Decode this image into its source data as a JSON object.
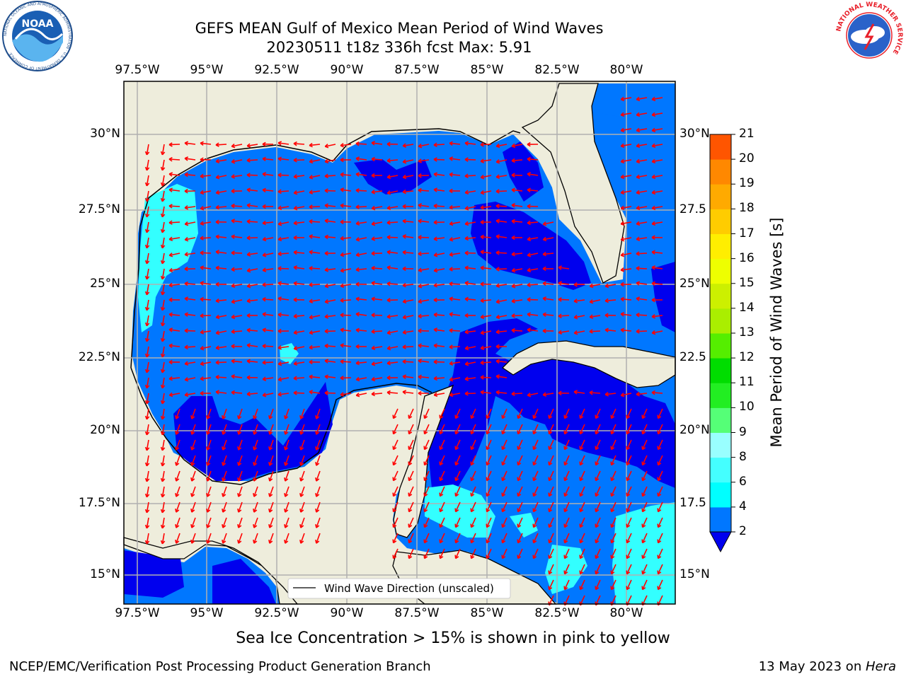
{
  "header": {
    "title_line1": "GEFS MEAN Gulf of Mexico Mean Period of Wind Waves",
    "title_line2": "20230511 t18z 336h fcst   Max: 5.91"
  },
  "logos": {
    "left": {
      "text": "NOAA",
      "ring_text": "NATIONAL OCEANIC AND ATMOSPHERIC ADMINISTRATION · U.S. DEPARTMENT OF COMMERCE"
    },
    "right": {
      "ring_text": "NATIONAL WEATHER SERVICE"
    }
  },
  "map": {
    "lon_labels": [
      "97.5°W",
      "95°W",
      "92.5°W",
      "90°W",
      "87.5°W",
      "85°W",
      "82.5°W",
      "80°W"
    ],
    "lat_labels": [
      "30°N",
      "27.5°N",
      "25°N",
      "22.5°N",
      "20°N",
      "17.5°N",
      "15°N"
    ],
    "lat_labels_right": [
      "30°N",
      "27.5",
      "25°N",
      "22.5",
      "20°N",
      "17.5",
      "15°N"
    ],
    "legend": "Wind Wave Direction (unscaled)",
    "colors": {
      "land": "#eeeddc",
      "ocean_2_4": "#0077ff",
      "ocean_below_2": "#0000ee",
      "ocean_4_6": "#00ffff",
      "arrow": "#ff0000",
      "grid": "#b0b0b0"
    }
  },
  "colorbar": {
    "title": "Mean Period of Wind Waves [s]",
    "ticks": [
      "2",
      "4",
      "6",
      "8",
      "9",
      "10",
      "11",
      "12",
      "13",
      "14",
      "15",
      "16",
      "17",
      "18",
      "19",
      "20",
      "21"
    ],
    "colors": [
      "#0077ff",
      "#00ffff",
      "#44ffff",
      "#99ffff",
      "#55ff77",
      "#22ee22",
      "#00dd00",
      "#55ee00",
      "#aaee00",
      "#ccf000",
      "#eeff00",
      "#ffee00",
      "#ffcc00",
      "#ffaa00",
      "#ff8800",
      "#ff5500",
      "#ff2200",
      "#ff0000"
    ],
    "extend_color": "#0000ee"
  },
  "footer": {
    "ice_note": "Sea Ice Concentration > 15% is shown in pink to yellow",
    "credit": "NCEP/EMC/Verification Post Processing Product Generation Branch",
    "date_prefix": "13 May 2023 on ",
    "machine": "Hera"
  }
}
